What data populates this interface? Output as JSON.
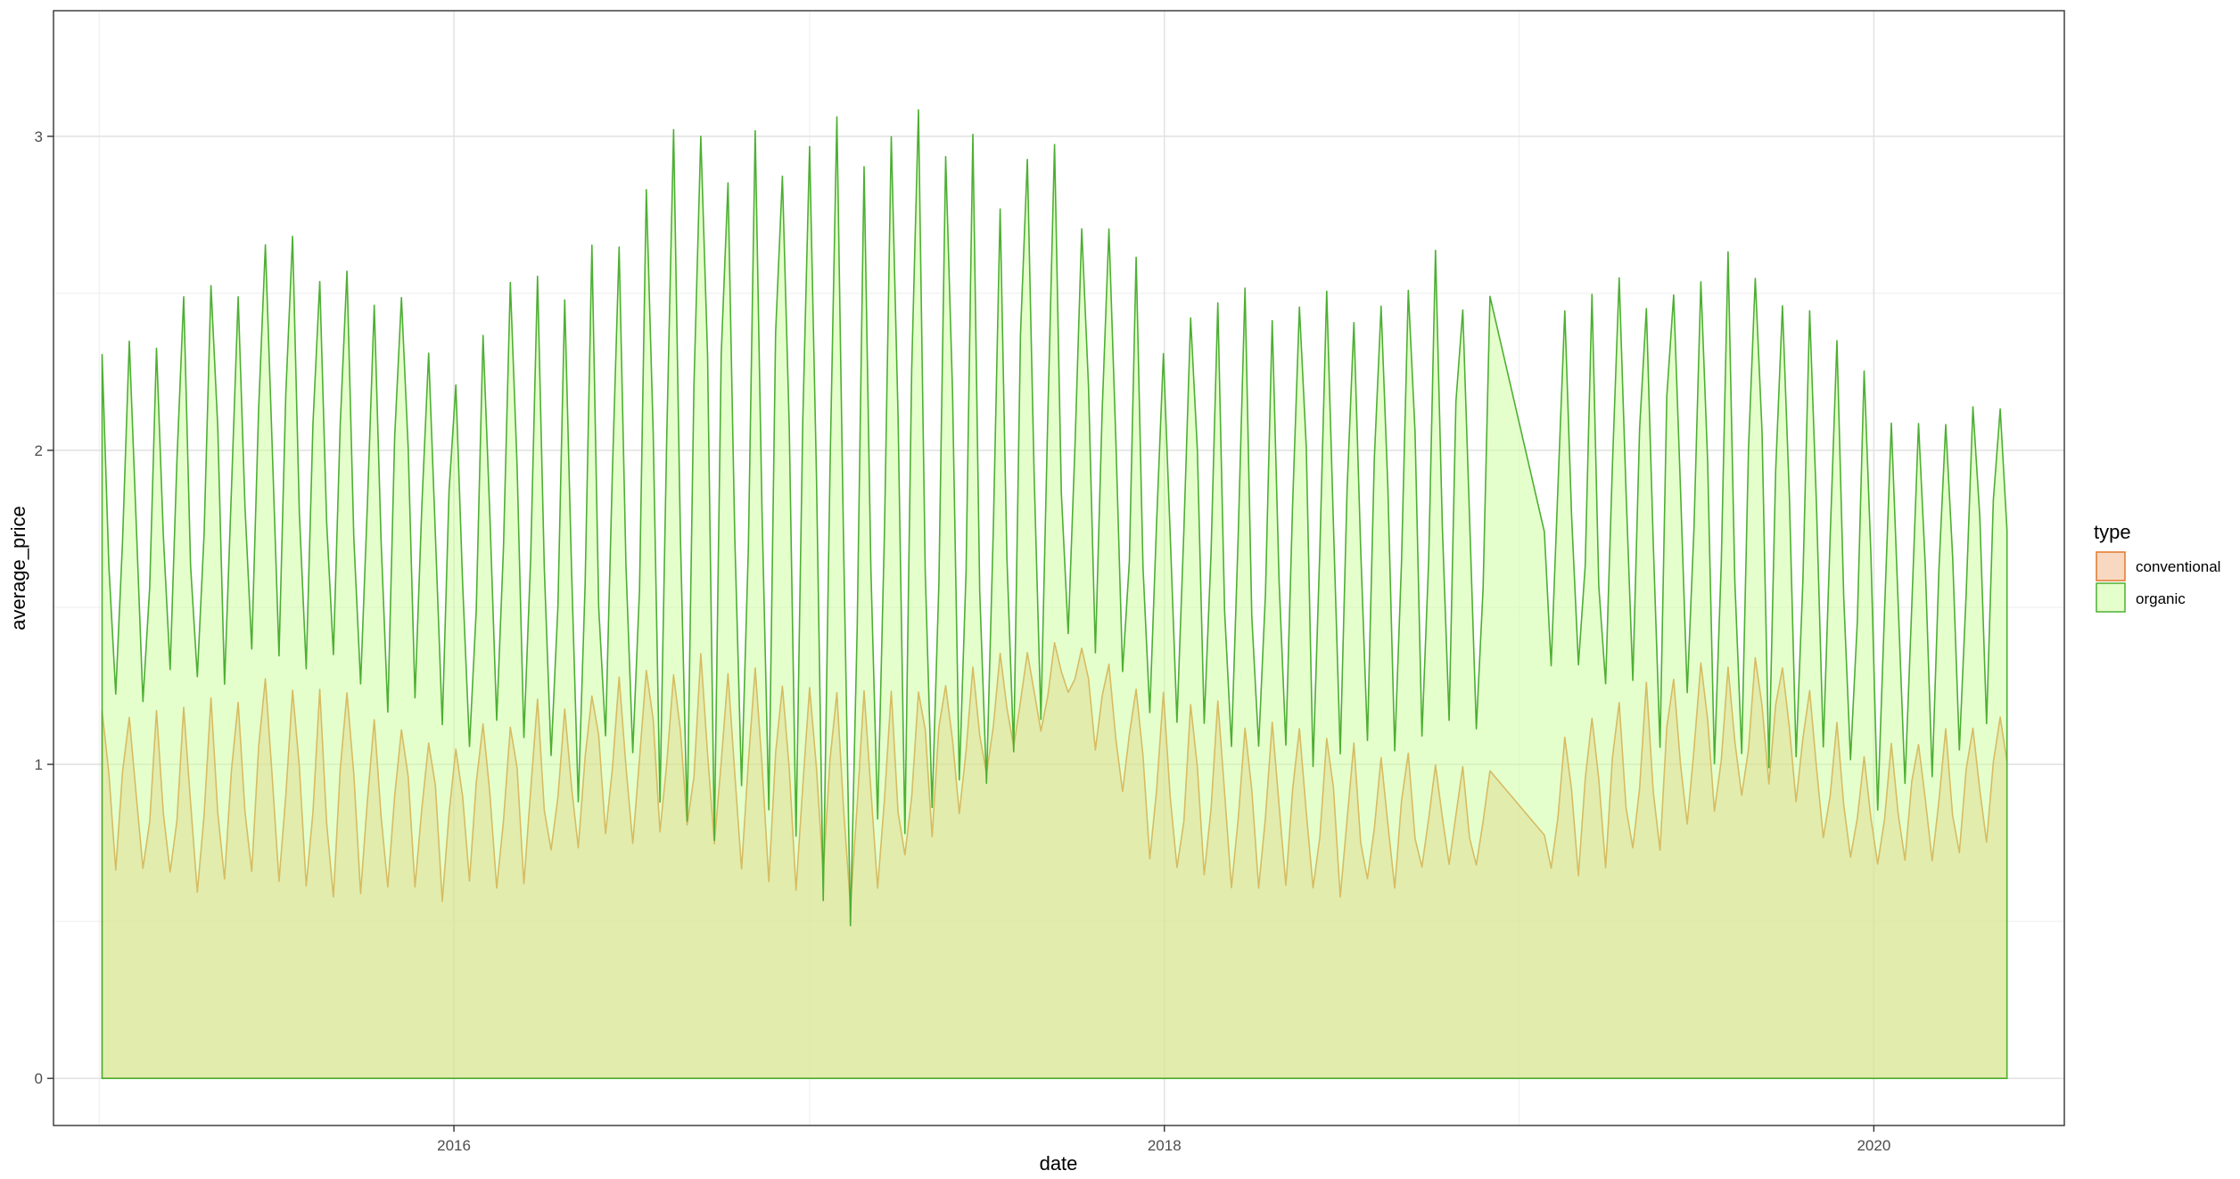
{
  "chart_data": {
    "type": "area",
    "xlabel": "date",
    "ylabel": "average_price",
    "x_range": [
      "2014-11-15",
      "2020-07-15"
    ],
    "ylim": [
      -0.15,
      3.4
    ],
    "x_ticks": [
      "2016-01-01",
      "2018-01-01",
      "2020-01-01"
    ],
    "x_tick_labels": [
      "2016",
      "2018",
      "2020"
    ],
    "y_ticks": [
      0,
      1,
      2,
      3
    ],
    "y_tick_labels": [
      "0",
      "1",
      "2",
      "3"
    ],
    "grid": true,
    "legend": {
      "title": "type",
      "placement": "right"
    },
    "series": [
      {
        "name": "conventional",
        "stroke": "#e0782b",
        "fill": "#f4b183",
        "fill_opacity": 0.5,
        "typical_range": [
          [
            "2015-01-04",
            0.62,
            1.18
          ],
          [
            "2015-07-01",
            0.55,
            1.32
          ],
          [
            "2016-01-01",
            0.55,
            1.12
          ],
          [
            "2016-08-01",
            0.75,
            1.38
          ],
          [
            "2017-03-01",
            0.5,
            1.25
          ],
          [
            "2017-09-24",
            1.2,
            1.42
          ],
          [
            "2018-01-01",
            0.6,
            1.25
          ],
          [
            "2018-06-01",
            0.55,
            1.15
          ],
          [
            "2018-12-02",
            0.66,
            1.0
          ],
          [
            "2019-01-27",
            0.62,
            1.04
          ],
          [
            "2019-06-01",
            0.7,
            1.35
          ],
          [
            "2019-09-15",
            0.9,
            1.4
          ],
          [
            "2020-01-01",
            0.62,
            1.05
          ],
          [
            "2020-05-17",
            0.75,
            1.2
          ]
        ]
      },
      {
        "name": "organic",
        "stroke": "#4daf33",
        "fill": "#ccff99",
        "fill_opacity": 0.5,
        "typical_range": [
          [
            "2015-01-04",
            1.05,
            2.32
          ],
          [
            "2015-07-26",
            1.25,
            2.78
          ],
          [
            "2016-01-01",
            1.0,
            2.38
          ],
          [
            "2016-10-30",
            0.7,
            3.25
          ],
          [
            "2017-03-05",
            0.44,
            3.16
          ],
          [
            "2017-09-24",
            1.2,
            3.0
          ],
          [
            "2018-01-01",
            1.0,
            2.5
          ],
          [
            "2018-06-01",
            0.9,
            2.55
          ],
          [
            "2018-12-02",
            1.0,
            2.7
          ],
          [
            "2019-01-27",
            1.2,
            2.5
          ],
          [
            "2019-07-28",
            0.95,
            2.78
          ],
          [
            "2020-01-01",
            0.85,
            2.25
          ],
          [
            "2020-05-17",
            1.0,
            2.26
          ]
        ]
      }
    ]
  }
}
